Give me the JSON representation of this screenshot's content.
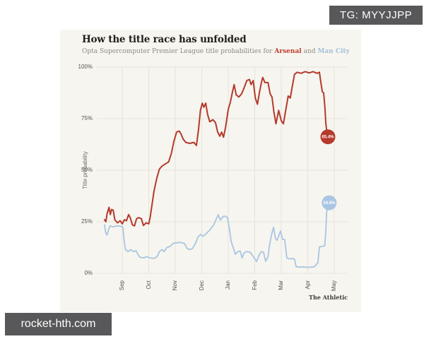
{
  "overlays": {
    "tg_badge": "TG: MYYJJPP",
    "watermark": "rocket-hth.com"
  },
  "chart_data": {
    "type": "line",
    "title": "How the title race has unfolded",
    "subtitle_prefix": "Opta Supercomputer Premier League title probabilities for ",
    "subtitle_conjunction": " and ",
    "ylabel": "Title probability",
    "credit": "The Athletic",
    "ylim": [
      0,
      100
    ],
    "grid": true,
    "colors": {
      "background": "#f6f5ef",
      "gridline": "#e5e4db",
      "arsenal": "#b5392c",
      "man_city": "#a9c6e2"
    },
    "y_ticks": [
      {
        "label": "0%",
        "value": 0
      },
      {
        "label": "25%",
        "value": 25
      },
      {
        "label": "50%",
        "value": 50
      },
      {
        "label": "75%",
        "value": 75
      },
      {
        "label": "100%",
        "value": 100
      }
    ],
    "x_ticks": [
      {
        "label": "Sep",
        "month": 0
      },
      {
        "label": "Oct",
        "month": 1
      },
      {
        "label": "Nov",
        "month": 2
      },
      {
        "label": "Dec",
        "month": 3
      },
      {
        "label": "Jan",
        "month": 4
      },
      {
        "label": "Feb",
        "month": 5
      },
      {
        "label": "Mar",
        "month": 6
      },
      {
        "label": "Apr",
        "month": 7
      },
      {
        "label": "May",
        "month": 8
      }
    ],
    "series": [
      {
        "name": "Arsenal",
        "color": "#b5392c",
        "line_width": 2,
        "end_label": "65.4%",
        "end_dot": {
          "x": 7.76,
          "y": 66.2
        },
        "points": [
          [
            -0.67,
            26
          ],
          [
            -0.62,
            25
          ],
          [
            -0.57,
            29
          ],
          [
            -0.5,
            32
          ],
          [
            -0.45,
            28.5
          ],
          [
            -0.4,
            31
          ],
          [
            -0.34,
            30.5
          ],
          [
            -0.28,
            26
          ],
          [
            -0.18,
            24.5
          ],
          [
            -0.08,
            25.5
          ],
          [
            0,
            24
          ],
          [
            0.08,
            26
          ],
          [
            0.16,
            25.5
          ],
          [
            0.24,
            28.5
          ],
          [
            0.3,
            27
          ],
          [
            0.38,
            23.5
          ],
          [
            0.46,
            23
          ],
          [
            0.54,
            26.5
          ],
          [
            0.62,
            27
          ],
          [
            0.72,
            26.5
          ],
          [
            0.8,
            23.2
          ],
          [
            0.9,
            24.5
          ],
          [
            1,
            24
          ],
          [
            1.05,
            27
          ],
          [
            1.12,
            33
          ],
          [
            1.2,
            40
          ],
          [
            1.3,
            46
          ],
          [
            1.4,
            50.5
          ],
          [
            1.5,
            52
          ],
          [
            1.62,
            53
          ],
          [
            1.75,
            54
          ],
          [
            1.85,
            58
          ],
          [
            1.95,
            64
          ],
          [
            2.05,
            68.5
          ],
          [
            2.15,
            69
          ],
          [
            2.22,
            67.5
          ],
          [
            2.3,
            65
          ],
          [
            2.4,
            63.5
          ],
          [
            2.55,
            63
          ],
          [
            2.7,
            63.5
          ],
          [
            2.8,
            62
          ],
          [
            2.88,
            70
          ],
          [
            2.95,
            79
          ],
          [
            3.02,
            82.5
          ],
          [
            3.08,
            80.5
          ],
          [
            3.15,
            82.5
          ],
          [
            3.22,
            77
          ],
          [
            3.3,
            73.5
          ],
          [
            3.42,
            74.5
          ],
          [
            3.52,
            73
          ],
          [
            3.6,
            68.5
          ],
          [
            3.68,
            66.5
          ],
          [
            3.75,
            68.5
          ],
          [
            3.82,
            66
          ],
          [
            3.9,
            71
          ],
          [
            4,
            79.5
          ],
          [
            4.08,
            83
          ],
          [
            4.16,
            88
          ],
          [
            4.22,
            91.5
          ],
          [
            4.3,
            86.5
          ],
          [
            4.4,
            85.5
          ],
          [
            4.5,
            87
          ],
          [
            4.6,
            90
          ],
          [
            4.7,
            93.5
          ],
          [
            4.8,
            94
          ],
          [
            4.86,
            91.5
          ],
          [
            4.94,
            93.5
          ],
          [
            5.02,
            85
          ],
          [
            5.1,
            82
          ],
          [
            5.18,
            88
          ],
          [
            5.25,
            92.5
          ],
          [
            5.3,
            95
          ],
          [
            5.38,
            92.5
          ],
          [
            5.5,
            92.5
          ],
          [
            5.58,
            87
          ],
          [
            5.65,
            85.5
          ],
          [
            5.72,
            78.5
          ],
          [
            5.8,
            72.5
          ],
          [
            5.9,
            79
          ],
          [
            6,
            74
          ],
          [
            6.08,
            72.5
          ],
          [
            6.18,
            80
          ],
          [
            6.26,
            86
          ],
          [
            6.34,
            85
          ],
          [
            6.42,
            91
          ],
          [
            6.5,
            96.5
          ],
          [
            6.6,
            97.5
          ],
          [
            6.75,
            97
          ],
          [
            6.9,
            97.8
          ],
          [
            7.05,
            97.2
          ],
          [
            7.2,
            97.8
          ],
          [
            7.35,
            97
          ],
          [
            7.44,
            97.5
          ],
          [
            7.5,
            92
          ],
          [
            7.55,
            88
          ],
          [
            7.6,
            87.5
          ],
          [
            7.65,
            80
          ],
          [
            7.68,
            73
          ],
          [
            7.72,
            68.5
          ]
        ]
      },
      {
        "name": "Man City",
        "color": "#a9c6e2",
        "line_width": 1.8,
        "end_label": "34.6%",
        "end_dot": {
          "x": 7.81,
          "y": 34.2
        },
        "points": [
          [
            -0.67,
            23.5
          ],
          [
            -0.63,
            20
          ],
          [
            -0.58,
            18.5
          ],
          [
            -0.52,
            21
          ],
          [
            -0.46,
            23
          ],
          [
            -0.35,
            22.5
          ],
          [
            -0.2,
            23
          ],
          [
            -0.05,
            22.8
          ],
          [
            0.02,
            22.5
          ],
          [
            0.07,
            16
          ],
          [
            0.12,
            11.5
          ],
          [
            0.22,
            10.5
          ],
          [
            0.32,
            11.5
          ],
          [
            0.42,
            10.5
          ],
          [
            0.52,
            11
          ],
          [
            0.6,
            9
          ],
          [
            0.66,
            7.8
          ],
          [
            0.8,
            7.5
          ],
          [
            0.92,
            8
          ],
          [
            1.05,
            7.5
          ],
          [
            1.2,
            7.2
          ],
          [
            1.32,
            8.2
          ],
          [
            1.4,
            10.5
          ],
          [
            1.5,
            11.5
          ],
          [
            1.58,
            10.5
          ],
          [
            1.68,
            12.5
          ],
          [
            1.8,
            13
          ],
          [
            1.92,
            14.5
          ],
          [
            2.05,
            14.8
          ],
          [
            2.2,
            15
          ],
          [
            2.35,
            14.5
          ],
          [
            2.45,
            12
          ],
          [
            2.55,
            11.5
          ],
          [
            2.65,
            12
          ],
          [
            2.78,
            15
          ],
          [
            2.85,
            17.5
          ],
          [
            2.95,
            18.8
          ],
          [
            3.05,
            18
          ],
          [
            3.15,
            19
          ],
          [
            3.3,
            21
          ],
          [
            3.45,
            23.5
          ],
          [
            3.57,
            27
          ],
          [
            3.62,
            28.4
          ],
          [
            3.7,
            25.8
          ],
          [
            3.8,
            27.5
          ],
          [
            3.9,
            27.7
          ],
          [
            3.97,
            27
          ],
          [
            4.05,
            21
          ],
          [
            4.11,
            15.4
          ],
          [
            4.2,
            12
          ],
          [
            4.27,
            9.2
          ],
          [
            4.36,
            10.5
          ],
          [
            4.45,
            10.8
          ],
          [
            4.52,
            7.5
          ],
          [
            4.6,
            10
          ],
          [
            4.7,
            10.5
          ],
          [
            4.83,
            10.2
          ],
          [
            4.95,
            8
          ],
          [
            5.07,
            5.8
          ],
          [
            5.17,
            9
          ],
          [
            5.25,
            10.5
          ],
          [
            5.33,
            10.2
          ],
          [
            5.41,
            5.8
          ],
          [
            5.5,
            8
          ],
          [
            5.55,
            13
          ],
          [
            5.63,
            18.5
          ],
          [
            5.71,
            22.3
          ],
          [
            5.78,
            17
          ],
          [
            5.84,
            16
          ],
          [
            5.9,
            18
          ],
          [
            5.97,
            20.5
          ],
          [
            6.05,
            16.5
          ],
          [
            6.13,
            16.3
          ],
          [
            6.21,
            7.5
          ],
          [
            6.3,
            7
          ],
          [
            6.4,
            7.2
          ],
          [
            6.5,
            6.8
          ],
          [
            6.56,
            3.2
          ],
          [
            6.7,
            3
          ],
          [
            6.85,
            3.1
          ],
          [
            7,
            2.9
          ],
          [
            7.15,
            3
          ],
          [
            7.25,
            3.2
          ],
          [
            7.31,
            4.1
          ],
          [
            7.38,
            5
          ],
          [
            7.44,
            12.7
          ],
          [
            7.52,
            13
          ],
          [
            7.6,
            13.2
          ],
          [
            7.64,
            13.5
          ],
          [
            7.68,
            20
          ],
          [
            7.71,
            29
          ],
          [
            7.73,
            31.5
          ]
        ]
      }
    ]
  }
}
